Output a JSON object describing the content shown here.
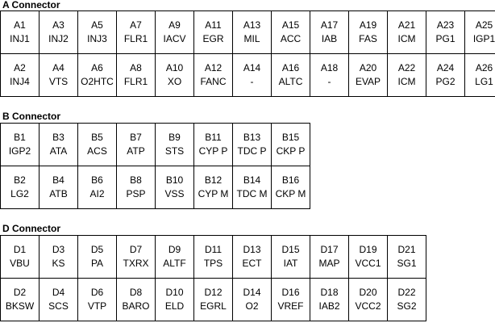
{
  "sections": [
    {
      "title": "A Connector",
      "rows": [
        [
          {
            "pin": "A1",
            "signal": "INJ1"
          },
          {
            "pin": "A3",
            "signal": "INJ2"
          },
          {
            "pin": "A5",
            "signal": "INJ3"
          },
          {
            "pin": "A7",
            "signal": "FLR1"
          },
          {
            "pin": "A9",
            "signal": "IACV"
          },
          {
            "pin": "A11",
            "signal": "EGR"
          },
          {
            "pin": "A13",
            "signal": "MIL"
          },
          {
            "pin": "A15",
            "signal": "ACC"
          },
          {
            "pin": "A17",
            "signal": "IAB"
          },
          {
            "pin": "A19",
            "signal": "FAS"
          },
          {
            "pin": "A21",
            "signal": "ICM"
          },
          {
            "pin": "A23",
            "signal": "PG1"
          },
          {
            "pin": "A25",
            "signal": "IGP1"
          }
        ],
        [
          {
            "pin": "A2",
            "signal": "INJ4"
          },
          {
            "pin": "A4",
            "signal": "VTS"
          },
          {
            "pin": "A6",
            "signal": "O2HTC"
          },
          {
            "pin": "A8",
            "signal": "FLR1"
          },
          {
            "pin": "A10",
            "signal": "XO"
          },
          {
            "pin": "A12",
            "signal": "FANC"
          },
          {
            "pin": "A14",
            "signal": "-"
          },
          {
            "pin": "A16",
            "signal": "ALTC"
          },
          {
            "pin": "A18",
            "signal": "-"
          },
          {
            "pin": "A20",
            "signal": "EVAP"
          },
          {
            "pin": "A22",
            "signal": "ICM"
          },
          {
            "pin": "A24",
            "signal": "PG2"
          },
          {
            "pin": "A26",
            "signal": "LG1"
          }
        ]
      ]
    },
    {
      "title": "B Connector",
      "rows": [
        [
          {
            "pin": "B1",
            "signal": "IGP2"
          },
          {
            "pin": "B3",
            "signal": "ATA"
          },
          {
            "pin": "B5",
            "signal": "ACS"
          },
          {
            "pin": "B7",
            "signal": "ATP"
          },
          {
            "pin": "B9",
            "signal": "STS"
          },
          {
            "pin": "B11",
            "signal": "CYP P"
          },
          {
            "pin": "B13",
            "signal": "TDC P"
          },
          {
            "pin": "B15",
            "signal": "CKP P"
          }
        ],
        [
          {
            "pin": "B2",
            "signal": "LG2"
          },
          {
            "pin": "B4",
            "signal": "ATB"
          },
          {
            "pin": "B6",
            "signal": "AI2"
          },
          {
            "pin": "B8",
            "signal": "PSP"
          },
          {
            "pin": "B10",
            "signal": "VSS"
          },
          {
            "pin": "B12",
            "signal": "CYP M"
          },
          {
            "pin": "B14",
            "signal": "TDC M"
          },
          {
            "pin": "B16",
            "signal": "CKP M"
          }
        ]
      ]
    },
    {
      "title": "D Connector",
      "rows": [
        [
          {
            "pin": "D1",
            "signal": "VBU"
          },
          {
            "pin": "D3",
            "signal": "KS"
          },
          {
            "pin": "D5",
            "signal": "PA"
          },
          {
            "pin": "D7",
            "signal": "TXRX"
          },
          {
            "pin": "D9",
            "signal": "ALTF"
          },
          {
            "pin": "D11",
            "signal": "TPS"
          },
          {
            "pin": "D13",
            "signal": "ECT"
          },
          {
            "pin": "D15",
            "signal": "IAT"
          },
          {
            "pin": "D17",
            "signal": "MAP"
          },
          {
            "pin": "D19",
            "signal": "VCC1"
          },
          {
            "pin": "D21",
            "signal": "SG1"
          }
        ],
        [
          {
            "pin": "D2",
            "signal": "BKSW"
          },
          {
            "pin": "D4",
            "signal": "SCS"
          },
          {
            "pin": "D6",
            "signal": "VTP"
          },
          {
            "pin": "D8",
            "signal": "BARO"
          },
          {
            "pin": "D10",
            "signal": "ELD"
          },
          {
            "pin": "D12",
            "signal": "EGRL"
          },
          {
            "pin": "D14",
            "signal": "O2"
          },
          {
            "pin": "D16",
            "signal": "VREF"
          },
          {
            "pin": "D18",
            "signal": "IAB2"
          },
          {
            "pin": "D20",
            "signal": "VCC2"
          },
          {
            "pin": "D22",
            "signal": "SG2"
          }
        ]
      ]
    }
  ]
}
